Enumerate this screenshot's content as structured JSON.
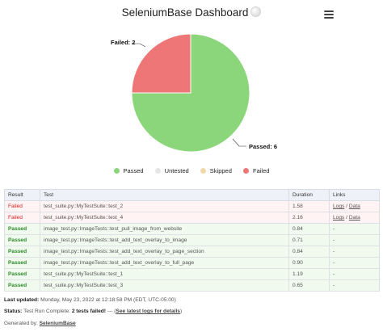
{
  "header": {
    "title": "SeleniumBase Dashboard",
    "menu_icon": "hamburger-menu-icon"
  },
  "chart_data": {
    "type": "pie",
    "slices": [
      {
        "name": "Passed",
        "value": 6,
        "color": "#8bd67a",
        "label": "Passed: 6"
      },
      {
        "name": "Untested",
        "value": 0,
        "color": "#e6e6e6"
      },
      {
        "name": "Skipped",
        "value": 0,
        "color": "#f1d8aa"
      },
      {
        "name": "Failed",
        "value": 2,
        "color": "#ef7677",
        "label": "Failed: 2"
      }
    ],
    "legend": [
      "Passed",
      "Untested",
      "Skipped",
      "Failed"
    ],
    "legend_position": "bottom"
  },
  "table": {
    "headers": [
      "Result",
      "Test",
      "Duration",
      "Links"
    ],
    "rows": [
      {
        "result": "Failed",
        "test": "test_suite.py::MyTestSuite::test_2",
        "duration": "1.58",
        "logs": "Logs",
        "sep": " / ",
        "data": "Data"
      },
      {
        "result": "Failed",
        "test": "test_suite.py::MyTestSuite::test_4",
        "duration": "2.16",
        "logs": "Logs",
        "sep": " / ",
        "data": "Data"
      },
      {
        "result": "Passed",
        "test": "image_test.py::ImageTests::test_pull_image_from_website",
        "duration": "0.84",
        "links": "-"
      },
      {
        "result": "Passed",
        "test": "image_test.py::ImageTests::test_add_text_overlay_to_image",
        "duration": "0.71",
        "links": "-"
      },
      {
        "result": "Passed",
        "test": "image_test.py::ImageTests::test_add_text_overlay_to_page_section",
        "duration": "0.84",
        "links": "-"
      },
      {
        "result": "Passed",
        "test": "image_test.py::ImageTests::test_add_text_overlay_to_full_page",
        "duration": "0.90",
        "links": "-"
      },
      {
        "result": "Passed",
        "test": "test_suite.py::MyTestSuite::test_1",
        "duration": "1.19",
        "links": "-"
      },
      {
        "result": "Passed",
        "test": "test_suite.py::MyTestSuite::test_3",
        "duration": "0.65",
        "links": "-"
      }
    ]
  },
  "footer": {
    "last_updated_label": "Last updated:",
    "last_updated_value": " Monday, May 23, 2022 at 12:18:58 PM (EDT, UTC-05:00)",
    "status_label": "Status:",
    "status_text": " Test Run Complete: ",
    "status_failed": "2 tests failed!",
    "status_dash": " --- (",
    "status_link": "See latest logs for details",
    "status_close": ")",
    "generated_label": "Generated by: ",
    "generated_link": "SeleniumBase"
  }
}
